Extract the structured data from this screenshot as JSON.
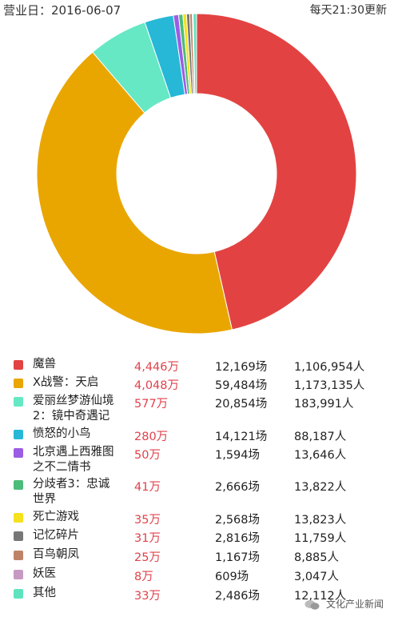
{
  "header": {
    "date_label": "营业日：2016-06-07",
    "update_note": "每天21:30更新"
  },
  "chart_data": {
    "type": "pie",
    "title": "",
    "categories": [
      "魔兽",
      "X战警：天启",
      "爱丽丝梦游仙境2：镜中奇遇记",
      "愤怒的小鸟",
      "北京遇上西雅图之不二情书",
      "分歧者3：忠诚世界",
      "死亡游戏",
      "记忆碎片",
      "百鸟朝凤",
      "妖医",
      "其他"
    ],
    "values": [
      4446,
      4048,
      577,
      280,
      50,
      41,
      35,
      31,
      25,
      8,
      33
    ],
    "colors": [
      "#e24342",
      "#e9a600",
      "#66e8c4",
      "#26b8d6",
      "#9b5de5",
      "#4dbb7a",
      "#f5e11d",
      "#777777",
      "#c08266",
      "#c79ac4",
      "#5fe3bf"
    ],
    "unit": "万"
  },
  "rows": [
    {
      "name": "魔兽",
      "box": "4,446万",
      "shows": "12,169场",
      "people": "1,106,954人"
    },
    {
      "name": "X战警：天启",
      "box": "4,048万",
      "shows": "59,484场",
      "people": "1,173,135人"
    },
    {
      "name_line1": "爱丽丝梦游仙境",
      "name_line2": "2：镜中奇遇记",
      "box": "577万",
      "shows": "20,854场",
      "people": "183,991人"
    },
    {
      "name": "愤怒的小鸟",
      "box": "280万",
      "shows": "14,121场",
      "people": "88,187人"
    },
    {
      "name_line1": "北京遇上西雅图",
      "name_line2": "之不二情书",
      "box": "50万",
      "shows": "1,594场",
      "people": "13,646人"
    },
    {
      "name_line1": "分歧者3：忠诚",
      "name_line2": "世界",
      "box": "41万",
      "shows": "2,666场",
      "people": "13,822人"
    },
    {
      "name": "死亡游戏",
      "box": "35万",
      "shows": "2,568场",
      "people": "13,823人"
    },
    {
      "name": "记忆碎片",
      "box": "31万",
      "shows": "2,816场",
      "people": "11,759人"
    },
    {
      "name": "百鸟朝凤",
      "box": "25万",
      "shows": "1,167场",
      "people": "8,885人"
    },
    {
      "name": "妖医",
      "box": "8万",
      "shows": "609场",
      "people": "3,047人"
    },
    {
      "name": "其他",
      "box": "33万",
      "shows": "2,486场",
      "people": "12,112人"
    }
  ],
  "watermark": {
    "text": "文化产业新闻",
    "icon": "wechat-icon"
  }
}
